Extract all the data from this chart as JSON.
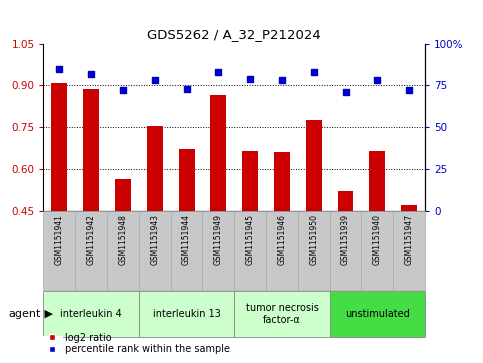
{
  "title": "GDS5262 / A_32_P212024",
  "samples": [
    "GSM1151941",
    "GSM1151942",
    "GSM1151948",
    "GSM1151943",
    "GSM1151944",
    "GSM1151949",
    "GSM1151945",
    "GSM1151946",
    "GSM1151950",
    "GSM1151939",
    "GSM1151940",
    "GSM1151947"
  ],
  "log2_ratio": [
    0.91,
    0.885,
    0.565,
    0.755,
    0.67,
    0.865,
    0.665,
    0.66,
    0.775,
    0.52,
    0.665,
    0.47
  ],
  "percentile_rank": [
    85,
    82,
    72,
    78,
    73,
    83,
    79,
    78,
    83,
    71,
    78,
    72
  ],
  "ylim_left": [
    0.45,
    1.05
  ],
  "ylim_right": [
    0,
    100
  ],
  "yticks_left": [
    0.45,
    0.6,
    0.75,
    0.9,
    1.05
  ],
  "yticks_right": [
    0,
    25,
    50,
    75,
    100
  ],
  "ytick_labels_right": [
    "0",
    "25",
    "50",
    "75",
    "100%"
  ],
  "hlines": [
    0.6,
    0.75,
    0.9
  ],
  "bar_color": "#cc0000",
  "scatter_color": "#0000cc",
  "groups": [
    {
      "label": "interleukin 4",
      "indices": [
        0,
        1,
        2
      ],
      "color": "#ccffcc"
    },
    {
      "label": "interleukin 13",
      "indices": [
        3,
        4,
        5
      ],
      "color": "#ccffcc"
    },
    {
      "label": "tumor necrosis\nfactor-α",
      "indices": [
        6,
        7,
        8
      ],
      "color": "#ccffcc"
    },
    {
      "label": "unstimulated",
      "indices": [
        9,
        10,
        11
      ],
      "color": "#44dd44"
    }
  ],
  "agent_label": "agent",
  "legend_log2": "log2 ratio",
  "legend_pct": "percentile rank within the sample",
  "plot_bg": "#ffffff",
  "left_tick_color": "#cc0000",
  "right_tick_color": "#0000cc",
  "xtick_bg": "#c8c8c8",
  "xtick_edge": "#aaaaaa"
}
